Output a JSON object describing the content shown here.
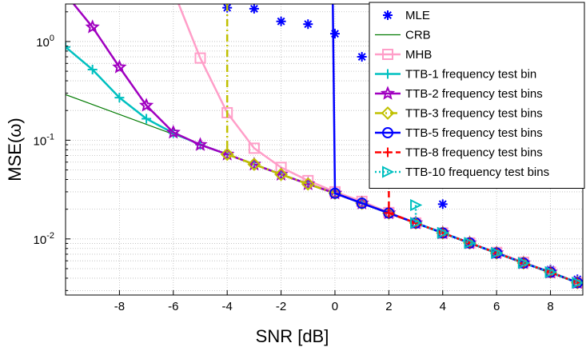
{
  "chart_data": {
    "type": "line",
    "xlabel": "SNR [dB]",
    "ylabel": "MSE(ω)",
    "xlim": [
      -10,
      9.2
    ],
    "ylim": [
      0.0027,
      2.4
    ],
    "yscale": "log",
    "grid": true,
    "legend_position": "top-right",
    "x_ticks": [
      -8,
      -6,
      -4,
      -2,
      0,
      2,
      4,
      6,
      8
    ],
    "x_tick_labels": [
      "-8",
      "-6",
      "-4",
      "-2",
      "0",
      "2",
      "4",
      "6",
      "8"
    ],
    "y_ticks": [
      0.01,
      0.1,
      1
    ],
    "y_tick_labels": [
      {
        "base": "10",
        "exp": "-2"
      },
      {
        "base": "10",
        "exp": "-1"
      },
      {
        "base": "10",
        "exp": "0"
      }
    ],
    "series": [
      {
        "name": "MLE",
        "color": "#0000ff",
        "line": "none",
        "marker": "asterisk",
        "x": [
          -4,
          -3,
          -2,
          -1,
          0,
          1,
          2,
          3,
          4,
          5,
          6,
          7,
          8,
          9
        ],
        "y": [
          2.2,
          2.15,
          1.6,
          1.5,
          1.2,
          0.7,
          0.34,
          0.055,
          0.0225,
          0.0088,
          0.0072,
          0.0058,
          0.0049,
          0.0039
        ]
      },
      {
        "name": "CRB",
        "color": "#007a00",
        "line": "solid",
        "marker": "none",
        "x": [
          -10,
          9.2
        ],
        "y": [
          0.29,
          0.0034
        ]
      },
      {
        "name": "MHB",
        "color": "#ff9ec8",
        "line": "solid",
        "marker": "square",
        "x": [
          -5.8,
          -5,
          -4,
          -3,
          -2,
          -1,
          0,
          1,
          2,
          3,
          4,
          5,
          6,
          7,
          8,
          9
        ],
        "y": [
          2.4,
          0.68,
          0.19,
          0.083,
          0.053,
          0.039,
          0.03,
          0.024,
          0.0185,
          0.0145,
          0.0115,
          0.0091,
          0.0073,
          0.0058,
          0.0046,
          0.0036
        ]
      },
      {
        "name": "TTB-1 frequency test bin",
        "color": "#00c0c0",
        "line": "solid",
        "marker": "plus",
        "x": [
          -10,
          -9,
          -8,
          -7,
          -6,
          -5,
          -4,
          -3,
          -2,
          -1,
          0,
          1,
          2,
          3,
          4,
          5,
          6,
          7,
          8,
          9
        ],
        "y": [
          0.88,
          0.52,
          0.27,
          0.165,
          0.118,
          0.09,
          0.072,
          0.057,
          0.045,
          0.036,
          0.029,
          0.023,
          0.0183,
          0.0145,
          0.0115,
          0.0091,
          0.0072,
          0.0057,
          0.0046,
          0.0036
        ]
      },
      {
        "name": "TTB-2 frequency test bins",
        "color": "#a000c0",
        "line": "solid",
        "marker": "star",
        "x": [
          -9.7,
          -9,
          -8,
          -7,
          -6,
          -5,
          -4,
          -3,
          -2,
          -1,
          0,
          1,
          2,
          3,
          4,
          5,
          6,
          7,
          8,
          9
        ],
        "y": [
          2.4,
          1.4,
          0.55,
          0.225,
          0.12,
          0.09,
          0.072,
          0.057,
          0.045,
          0.036,
          0.029,
          0.023,
          0.0183,
          0.0145,
          0.0115,
          0.0091,
          0.0072,
          0.0057,
          0.0046,
          0.0036
        ]
      },
      {
        "name": "TTB-3 frequency test bins",
        "color": "#c0c000",
        "line": "dashdot",
        "marker": "diamond",
        "x": [
          -4,
          -4,
          -3,
          -2,
          -1,
          0,
          1,
          2,
          3,
          4,
          5,
          6,
          7,
          8,
          9
        ],
        "y": [
          2.4,
          0.072,
          0.057,
          0.045,
          0.036,
          0.029,
          0.023,
          0.0183,
          0.0145,
          0.0115,
          0.0091,
          0.0072,
          0.0057,
          0.0046,
          0.0036
        ]
      },
      {
        "name": "TTB-5 frequency test bins",
        "color": "#0000ff",
        "line": "solid",
        "marker": "circle",
        "x": [
          -0.08,
          0,
          1,
          2,
          3,
          4,
          5,
          6,
          7,
          8,
          9
        ],
        "y": [
          2.4,
          0.029,
          0.023,
          0.0183,
          0.0145,
          0.0115,
          0.0091,
          0.0072,
          0.0057,
          0.0046,
          0.0036
        ]
      },
      {
        "name": "TTB-8 frequency test bins",
        "color": "#ff0000",
        "line": "dashed",
        "marker": "plus",
        "x": [
          2,
          2,
          3,
          4,
          5,
          6,
          7,
          8,
          9
        ],
        "y": [
          2.4,
          0.0183,
          0.0145,
          0.0115,
          0.0091,
          0.0072,
          0.0057,
          0.0046,
          0.0036
        ]
      },
      {
        "name": "TTB-10 frequency test bins",
        "color": "#00c0c0",
        "line": "dotted",
        "marker": "triangle-right",
        "x": [
          3,
          3,
          4,
          5,
          6,
          7,
          8,
          9
        ],
        "y": [
          0.022,
          0.0145,
          0.0115,
          0.0091,
          0.0072,
          0.0057,
          0.0046,
          0.0036
        ]
      }
    ]
  }
}
